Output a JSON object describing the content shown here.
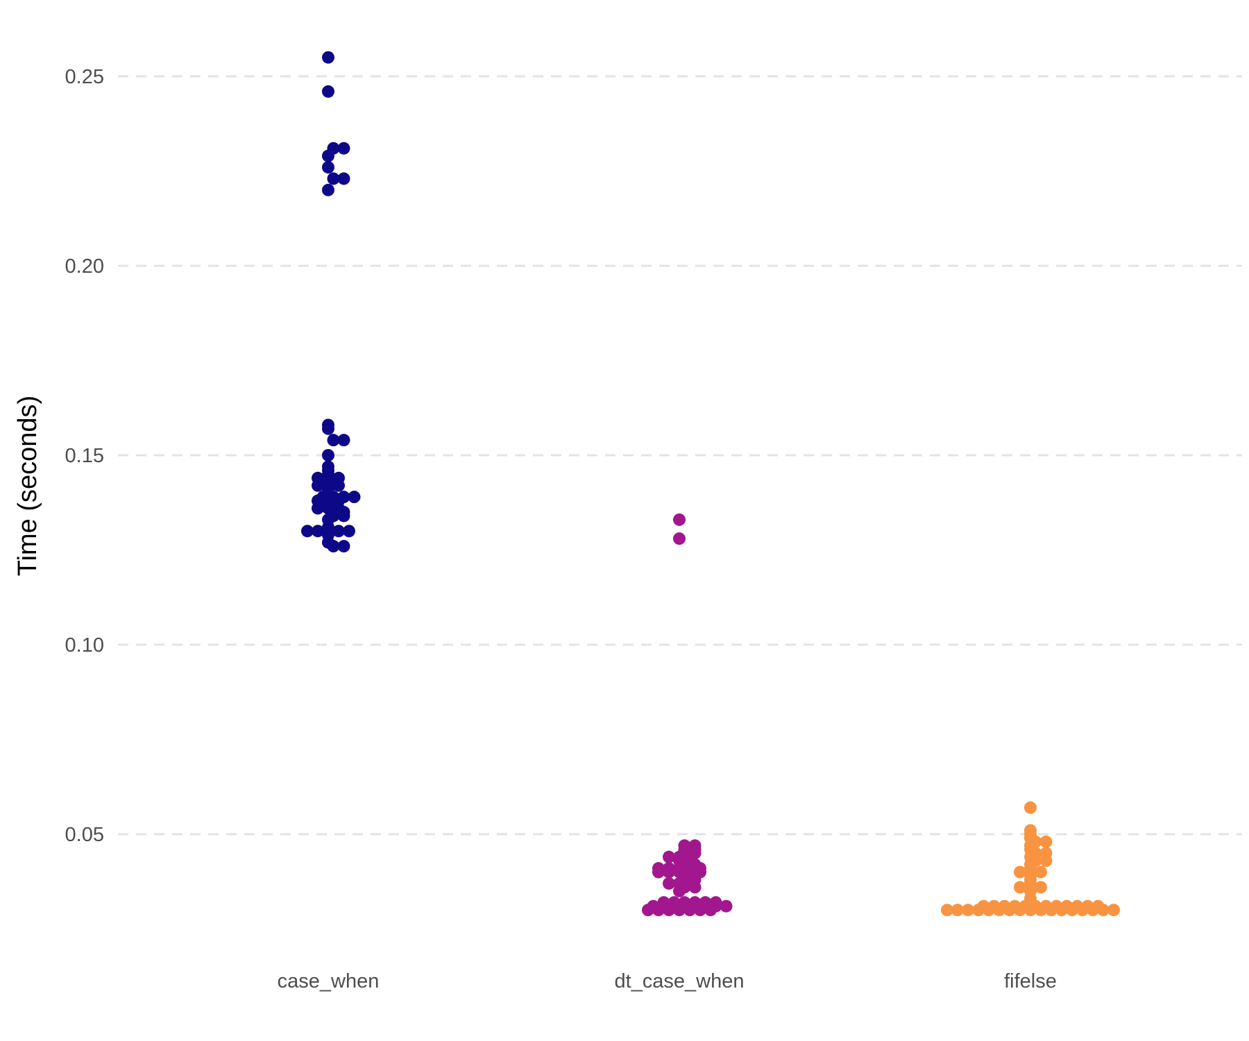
{
  "chart_data": {
    "type": "scatter",
    "subtype": "beeswarm",
    "title": "",
    "xlabel": "",
    "ylabel": "Time (seconds)",
    "ylim": [
      0.017,
      0.263
    ],
    "yticks": [
      0.05,
      0.1,
      0.15,
      0.2,
      0.25
    ],
    "ytick_labels": [
      "0.05",
      "0.10",
      "0.15",
      "0.20",
      "0.25"
    ],
    "categories": [
      "case_when",
      "dt_case_when",
      "fifelse"
    ],
    "grid": {
      "y_major": true,
      "style": "dashed",
      "x": false
    },
    "legend": "none",
    "series": [
      {
        "category": "case_when",
        "color": "#0D0887",
        "values": [
          0.255,
          0.246,
          0.231,
          0.231,
          0.229,
          0.226,
          0.223,
          0.223,
          0.22,
          0.158,
          0.157,
          0.154,
          0.154,
          0.15,
          0.147,
          0.146,
          0.145,
          0.144,
          0.144,
          0.144,
          0.143,
          0.142,
          0.142,
          0.142,
          0.141,
          0.14,
          0.139,
          0.139,
          0.139,
          0.139,
          0.138,
          0.138,
          0.138,
          0.137,
          0.136,
          0.136,
          0.136,
          0.135,
          0.135,
          0.134,
          0.134,
          0.133,
          0.131,
          0.13,
          0.13,
          0.13,
          0.13,
          0.13,
          0.129,
          0.127,
          0.126,
          0.126
        ]
      },
      {
        "category": "dt_case_when",
        "color": "#A2168E",
        "values": [
          0.133,
          0.128,
          0.047,
          0.047,
          0.046,
          0.046,
          0.045,
          0.045,
          0.044,
          0.044,
          0.044,
          0.043,
          0.042,
          0.042,
          0.041,
          0.041,
          0.041,
          0.041,
          0.041,
          0.04,
          0.04,
          0.04,
          0.04,
          0.04,
          0.039,
          0.039,
          0.038,
          0.038,
          0.037,
          0.037,
          0.037,
          0.036,
          0.036,
          0.035,
          0.032,
          0.032,
          0.032,
          0.032,
          0.032,
          0.032,
          0.031,
          0.031,
          0.031,
          0.031,
          0.031,
          0.031,
          0.031,
          0.031,
          0.03,
          0.03,
          0.03,
          0.03,
          0.03,
          0.03,
          0.03
        ]
      },
      {
        "category": "fifelse",
        "color": "#F89441",
        "values": [
          0.057,
          0.051,
          0.05,
          0.049,
          0.048,
          0.048,
          0.047,
          0.046,
          0.045,
          0.045,
          0.044,
          0.043,
          0.043,
          0.042,
          0.041,
          0.04,
          0.04,
          0.04,
          0.039,
          0.038,
          0.037,
          0.036,
          0.036,
          0.036,
          0.035,
          0.033,
          0.032,
          0.031,
          0.031,
          0.031,
          0.031,
          0.031,
          0.031,
          0.031,
          0.031,
          0.031,
          0.031,
          0.031,
          0.031,
          0.03,
          0.03,
          0.03,
          0.03,
          0.03,
          0.03,
          0.03,
          0.03,
          0.03,
          0.03,
          0.03,
          0.03,
          0.03,
          0.03,
          0.03,
          0.03,
          0.03
        ]
      }
    ]
  }
}
